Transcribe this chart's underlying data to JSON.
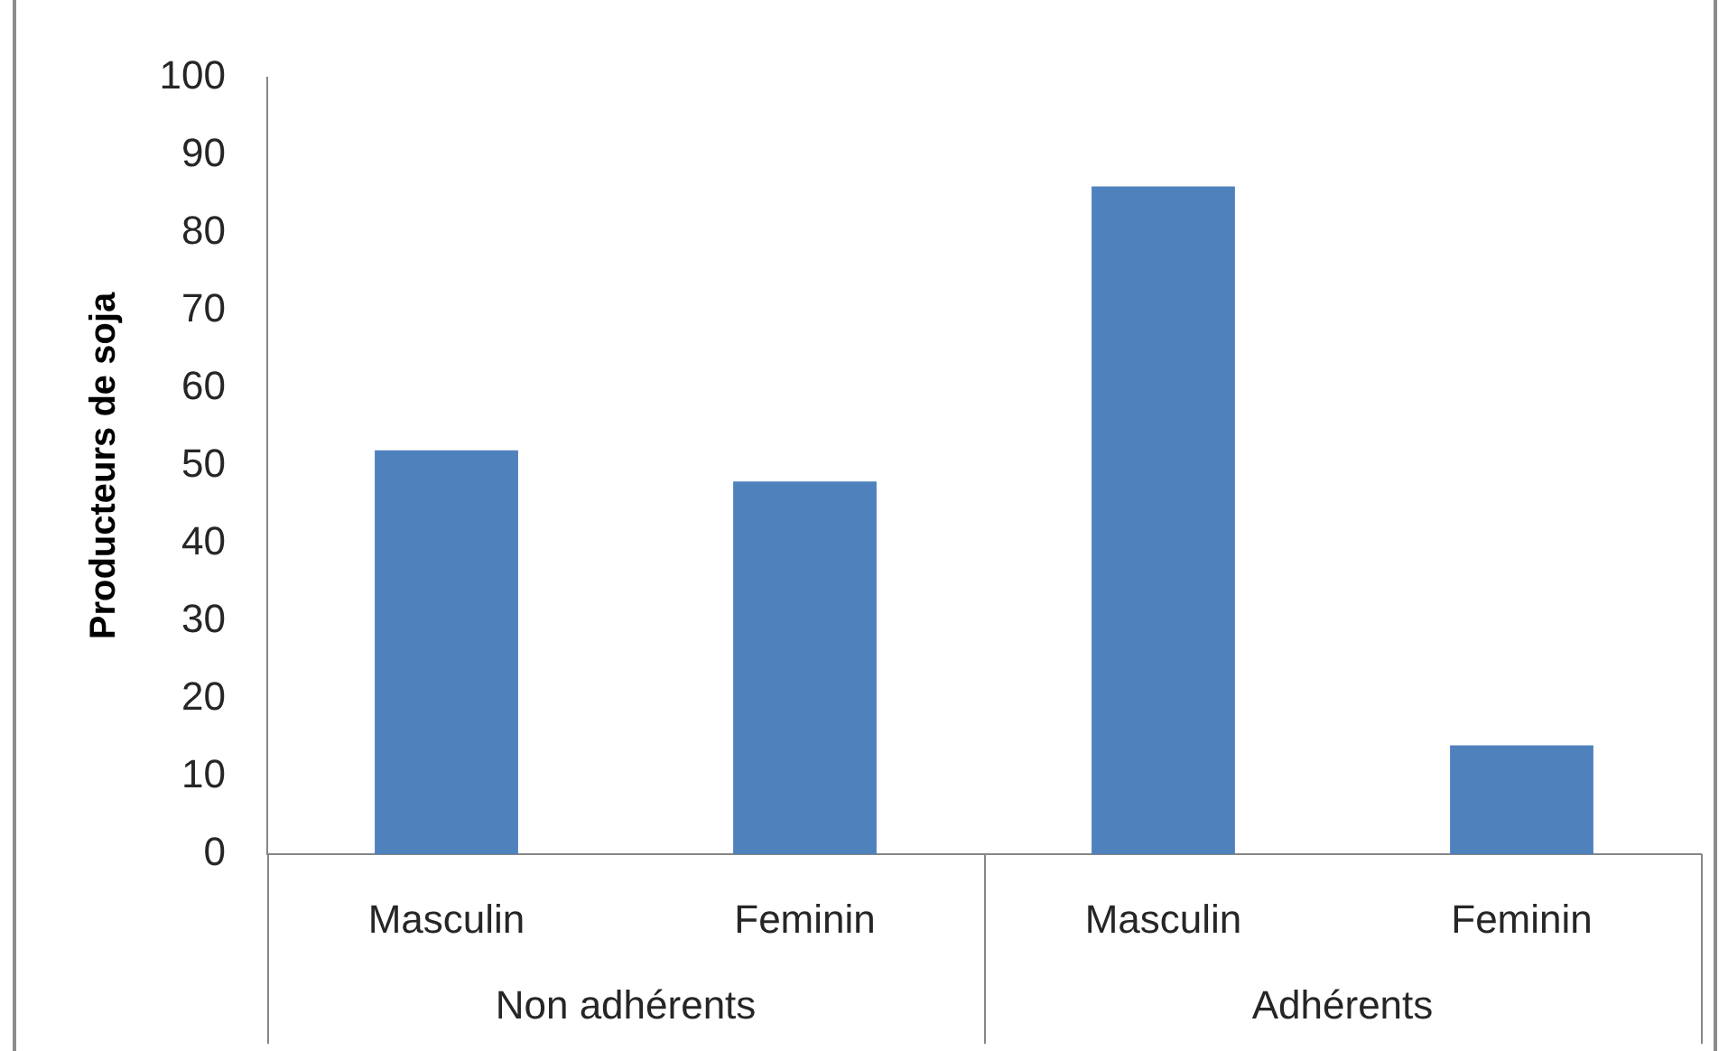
{
  "chart_data": {
    "type": "bar",
    "ylabel": "Producteurs de soja",
    "categories": [
      "Masculin",
      "Feminin",
      "Masculin",
      "Feminin"
    ],
    "values": [
      52,
      48,
      86,
      14
    ],
    "color": "#4f81bd",
    "ylim": [
      0,
      100
    ],
    "yticks": [
      0,
      10,
      20,
      30,
      40,
      50,
      60,
      70,
      80,
      90,
      100
    ],
    "annotations": [
      "Non adhérents",
      "Adhérents"
    ]
  }
}
